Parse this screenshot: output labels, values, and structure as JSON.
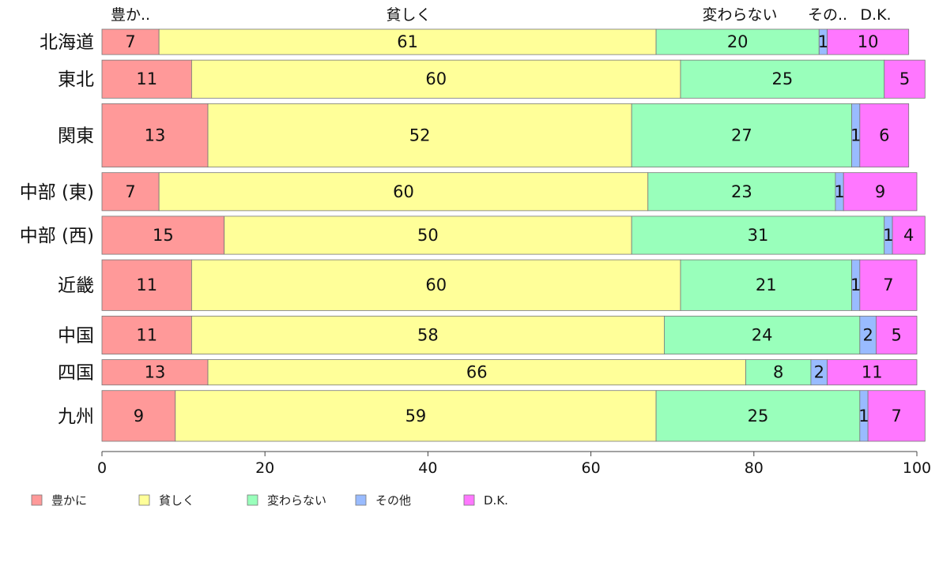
{
  "chart_data": {
    "type": "bar",
    "orientation": "horizontal",
    "stacked": true,
    "categories": [
      "北海道",
      "東北",
      "関東",
      "中部 (東)",
      "中部 (西)",
      "近畿",
      "中国",
      "四国",
      "九州"
    ],
    "series": [
      {
        "name": "豊かに",
        "top_label": "豊か..",
        "color": "#ff9999",
        "values": [
          7,
          11,
          13,
          7,
          15,
          11,
          11,
          13,
          9
        ]
      },
      {
        "name": "貧しく",
        "top_label": "貧しく",
        "color": "#ffff99",
        "values": [
          61,
          60,
          52,
          60,
          50,
          60,
          58,
          66,
          59
        ]
      },
      {
        "name": "変わらない",
        "top_label": "変わらない",
        "color": "#99ffbb",
        "values": [
          20,
          25,
          27,
          23,
          31,
          21,
          24,
          8,
          25
        ]
      },
      {
        "name": "その他",
        "top_label": "その..",
        "color": "#99bbff",
        "values": [
          1,
          0,
          1,
          1,
          1,
          1,
          2,
          2,
          1
        ]
      },
      {
        "name": "D.K.",
        "top_label": "D.K.",
        "color": "#ff77ff",
        "values": [
          10,
          5,
          6,
          9,
          4,
          7,
          5,
          11,
          7
        ]
      }
    ],
    "bar_weights": [
      2,
      3,
      5,
      3,
      3,
      4,
      3,
      2,
      4
    ],
    "xlim": [
      0,
      100
    ],
    "xticks": [
      0,
      20,
      40,
      60,
      80,
      100
    ],
    "xlabel": "",
    "ylabel": "",
    "title": "",
    "grid": false,
    "legend_position": "bottom"
  }
}
